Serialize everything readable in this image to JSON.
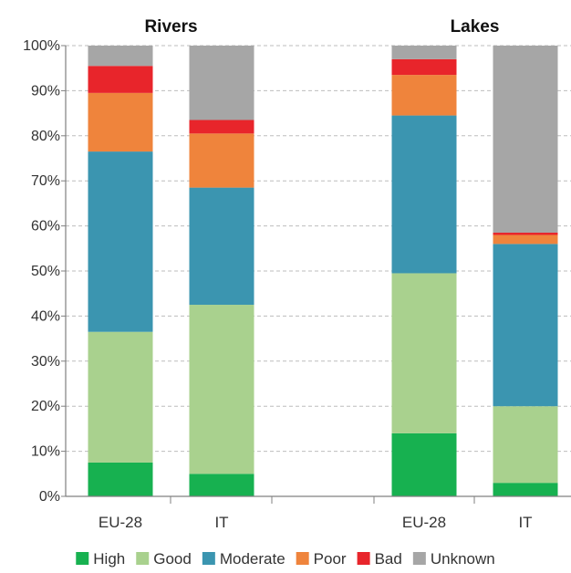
{
  "chart_data": {
    "type": "bar",
    "stacked": true,
    "groups": [
      {
        "title": "Rivers",
        "categories": [
          "EU-28",
          "IT"
        ]
      },
      {
        "title": "Lakes",
        "categories": [
          "EU-28",
          "IT"
        ]
      }
    ],
    "categories": [
      "EU-28",
      "IT",
      "EU-28",
      "IT"
    ],
    "series": [
      {
        "name": "High",
        "color": "#17b150",
        "values": [
          7.5,
          5.0,
          14.0,
          3.0
        ]
      },
      {
        "name": "Good",
        "color": "#a9d18e",
        "values": [
          29.0,
          37.5,
          35.5,
          17.0
        ]
      },
      {
        "name": "Moderate",
        "color": "#3b95b0",
        "values": [
          40.0,
          26.0,
          35.0,
          36.0
        ]
      },
      {
        "name": "Poor",
        "color": "#ef843c",
        "values": [
          13.0,
          12.0,
          9.0,
          2.0
        ]
      },
      {
        "name": "Bad",
        "color": "#e8252b",
        "values": [
          6.0,
          3.0,
          3.5,
          0.5
        ]
      },
      {
        "name": "Unknown",
        "color": "#a6a6a6",
        "values": [
          4.5,
          16.5,
          3.0,
          41.5
        ]
      }
    ],
    "yticks": [
      "0%",
      "10%",
      "20%",
      "30%",
      "40%",
      "50%",
      "60%",
      "70%",
      "80%",
      "90%",
      "100%"
    ],
    "ylim": [
      0,
      100
    ],
    "grid": true,
    "legend": "bottom",
    "xlabel": "",
    "ylabel": ""
  }
}
